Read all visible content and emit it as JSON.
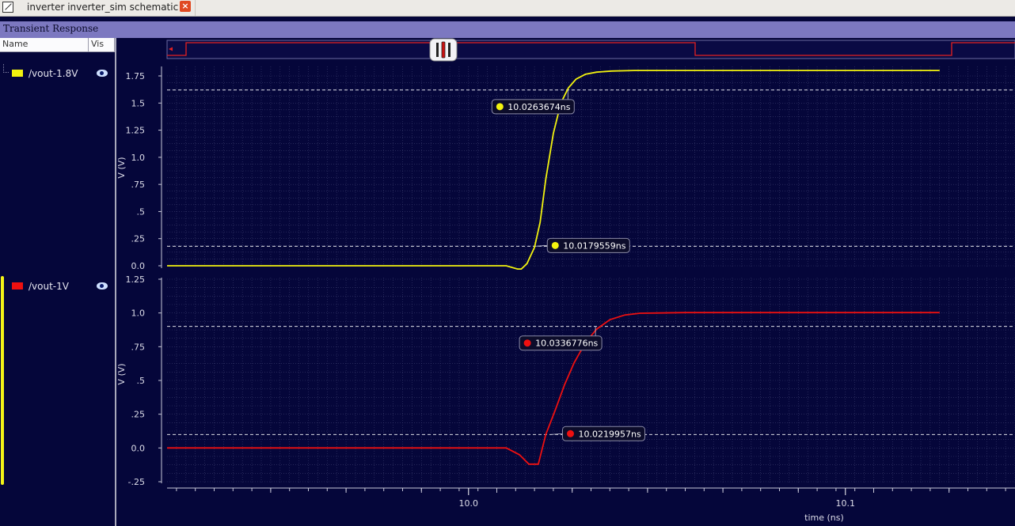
{
  "tab": {
    "title": "inverter inverter_sim schematic",
    "close_glyph": "×"
  },
  "window": {
    "title": "Transient Response"
  },
  "columns": {
    "name": "Name",
    "vis": "Vis"
  },
  "signals": [
    {
      "name": "/vout-1.8V",
      "color": "#f2f20f"
    },
    {
      "name": "/vout-1V",
      "color": "#ee1010"
    }
  ],
  "colors": {
    "background": "#05063a",
    "grid": "#3a3c6e",
    "threshold": "#ffffff",
    "yellow": "#f2f20f",
    "red": "#ee1010"
  },
  "chart_data": [
    {
      "type": "line",
      "series": [
        {
          "name": "/vout-1.8V",
          "color": "#f2f20f",
          "x": [
            9.92,
            10.0,
            10.01,
            10.013,
            10.014,
            10.0155,
            10.0175,
            10.019,
            10.0205,
            10.0225,
            10.0245,
            10.0265,
            10.0285,
            10.031,
            10.034,
            10.038,
            10.044,
            10.125
          ],
          "y": [
            0.0,
            0.0,
            0.0,
            -0.03,
            -0.03,
            0.02,
            0.17,
            0.4,
            0.8,
            1.22,
            1.5,
            1.64,
            1.72,
            1.765,
            1.785,
            1.795,
            1.8,
            1.8
          ]
        }
      ],
      "ylabel": "V (V)",
      "yticks": [
        "0.0",
        ".25",
        ".5",
        ".75",
        "1.0",
        "1.25",
        "1.5",
        "1.75"
      ],
      "ylim": [
        0.0,
        1.8
      ],
      "thresholds": [
        0.18,
        1.62
      ],
      "markers": [
        {
          "label": "10.0263674ns",
          "x": 10.0263674,
          "y": 1.62
        },
        {
          "label": "10.0179559ns",
          "x": 10.0179559,
          "y": 0.18
        }
      ],
      "grid": true
    },
    {
      "type": "line",
      "series": [
        {
          "name": "/vout-1V",
          "color": "#ee1010",
          "x": [
            9.92,
            10.0,
            10.01,
            10.0135,
            10.016,
            10.0185,
            10.0205,
            10.023,
            10.0255,
            10.028,
            10.031,
            10.034,
            10.0375,
            10.0415,
            10.0455,
            10.0505,
            10.0575,
            10.125
          ],
          "y": [
            0.0,
            0.0,
            0.0,
            -0.05,
            -0.12,
            -0.12,
            0.1,
            0.28,
            0.47,
            0.63,
            0.78,
            0.88,
            0.95,
            0.985,
            0.998,
            1.0,
            1.003,
            1.003
          ]
        }
      ],
      "ylabel": "V (V)",
      "yticks": [
        "-.25",
        "0.0",
        ".25",
        ".5",
        ".75",
        "1.0",
        "1.25"
      ],
      "ylim": [
        -0.25,
        1.25
      ],
      "thresholds": [
        0.1,
        0.9
      ],
      "markers": [
        {
          "label": "10.0336776ns",
          "x": 10.0336776,
          "y": 0.9
        },
        {
          "label": "10.0219957ns",
          "x": 10.0219957,
          "y": 0.1
        }
      ],
      "grid": true
    }
  ],
  "xaxis": {
    "label": "time (ns)",
    "ticks": [
      "10.0",
      "10.1"
    ],
    "xlim": [
      9.92,
      10.145
    ]
  }
}
